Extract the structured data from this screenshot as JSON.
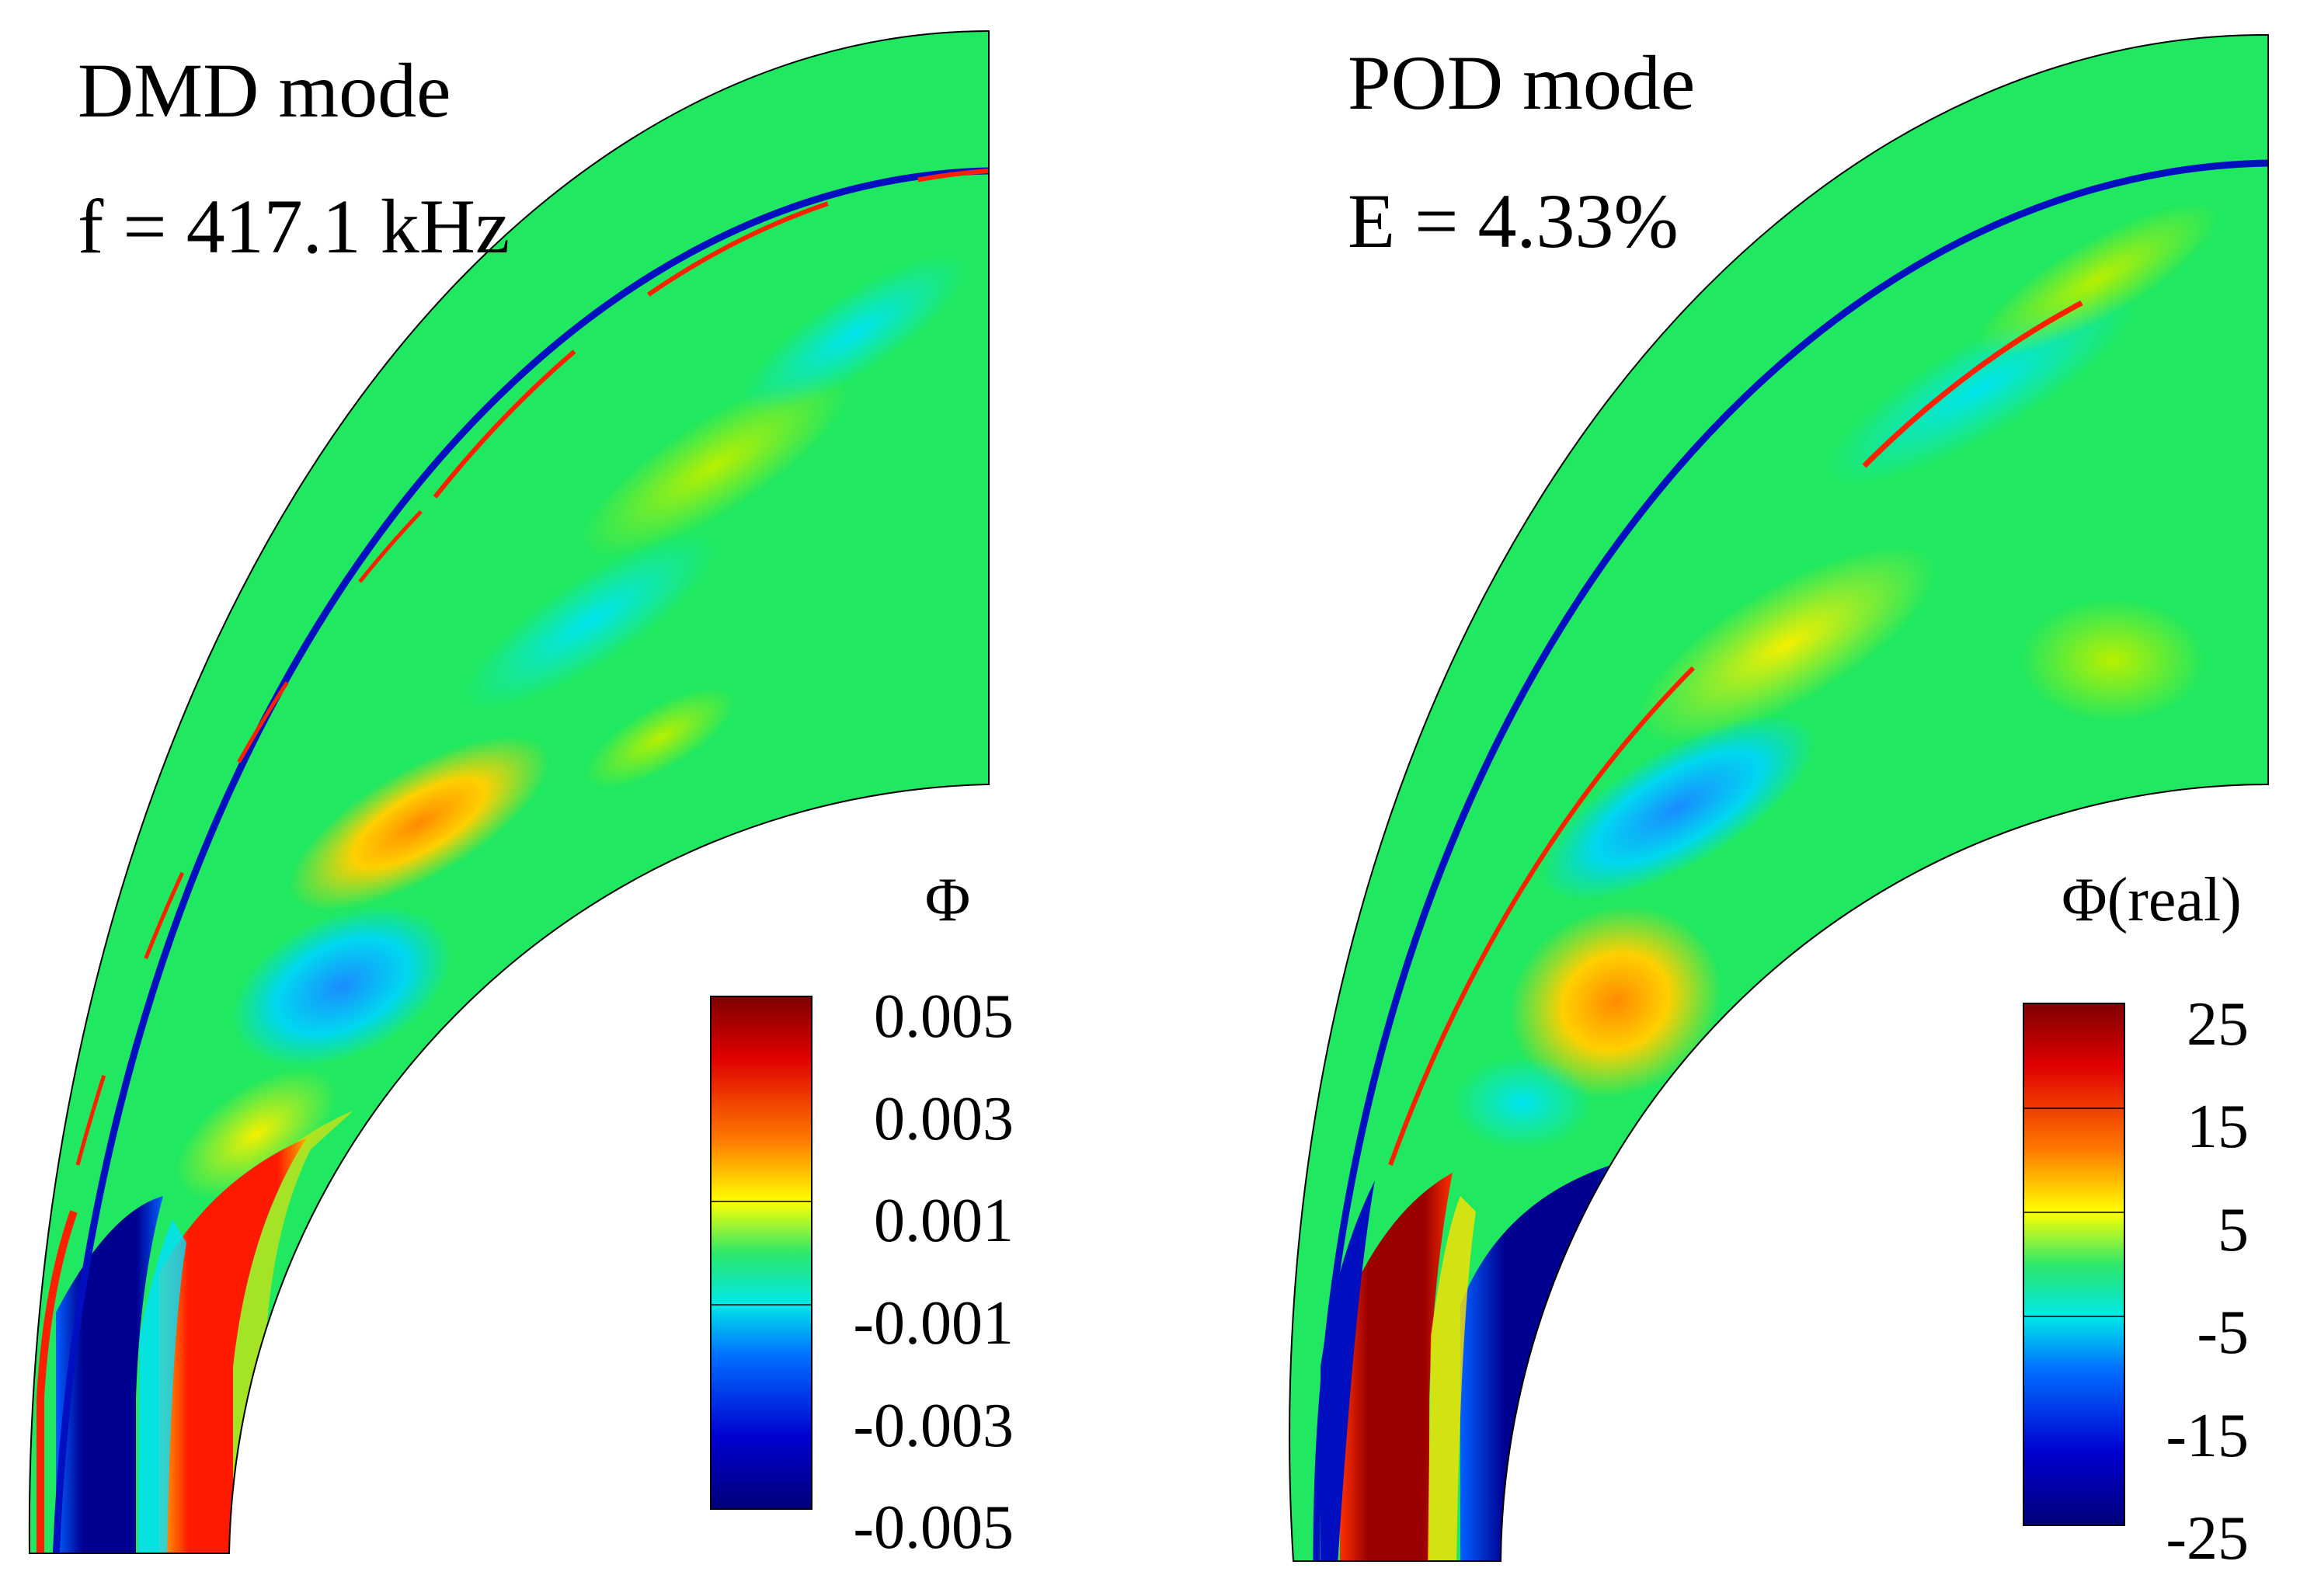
{
  "panels": [
    {
      "id": "dmd",
      "title": "DMD mode",
      "subtitle": "f = 417.1 kHz",
      "colorbar": {
        "title": "Φ",
        "ticks": [
          "0.005",
          "0.003",
          "0.001",
          "-0.001",
          "-0.003",
          "-0.005"
        ]
      }
    },
    {
      "id": "pod",
      "title": "POD mode",
      "subtitle": "E = 4.33%",
      "colorbar": {
        "title": "Φ(real)",
        "ticks": [
          "25",
          "15",
          "5",
          "-5",
          "-15",
          "-25"
        ]
      }
    }
  ],
  "colormap": [
    "#7f0000",
    "#e00000",
    "#ff7a00",
    "#ffff00",
    "#2ee86a",
    "#00e8e8",
    "#0070ff",
    "#0000d0",
    "#00007a"
  ],
  "background_color": "#20e860"
}
